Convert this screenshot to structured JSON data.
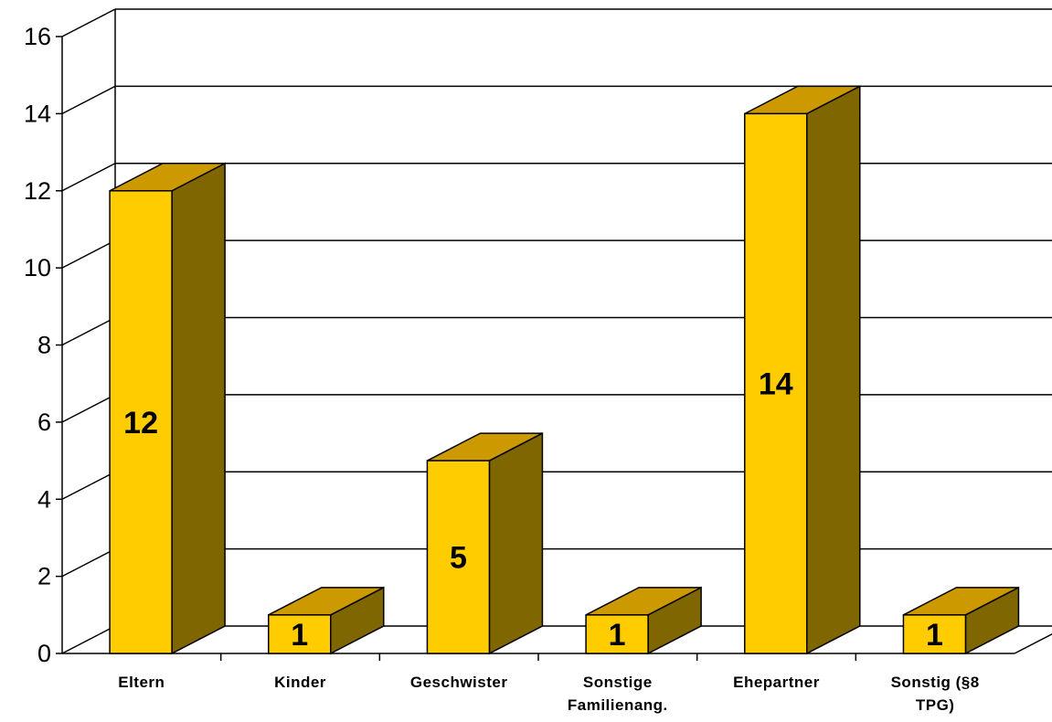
{
  "chart_data": {
    "type": "bar",
    "categories": [
      [
        "Eltern"
      ],
      [
        "Kinder"
      ],
      [
        "Geschwister"
      ],
      [
        "Sonstige",
        "Familienang."
      ],
      [
        "Ehepartner"
      ],
      [
        "Sonstig (§8",
        "TPG)"
      ]
    ],
    "values": [
      12,
      1,
      5,
      1,
      14,
      1
    ],
    "data_labels": [
      "12",
      "1",
      "5",
      "1",
      "14",
      "1"
    ],
    "yticks": [
      "0",
      "2",
      "4",
      "6",
      "8",
      "10",
      "12",
      "14",
      "16"
    ],
    "ylim": [
      0,
      16
    ],
    "grid": true,
    "three_d": true,
    "colors": {
      "front": "#FFCC00",
      "top": "#CC9900",
      "side": "#806600",
      "grid": "#000000",
      "background": "#FFFFFF"
    }
  }
}
